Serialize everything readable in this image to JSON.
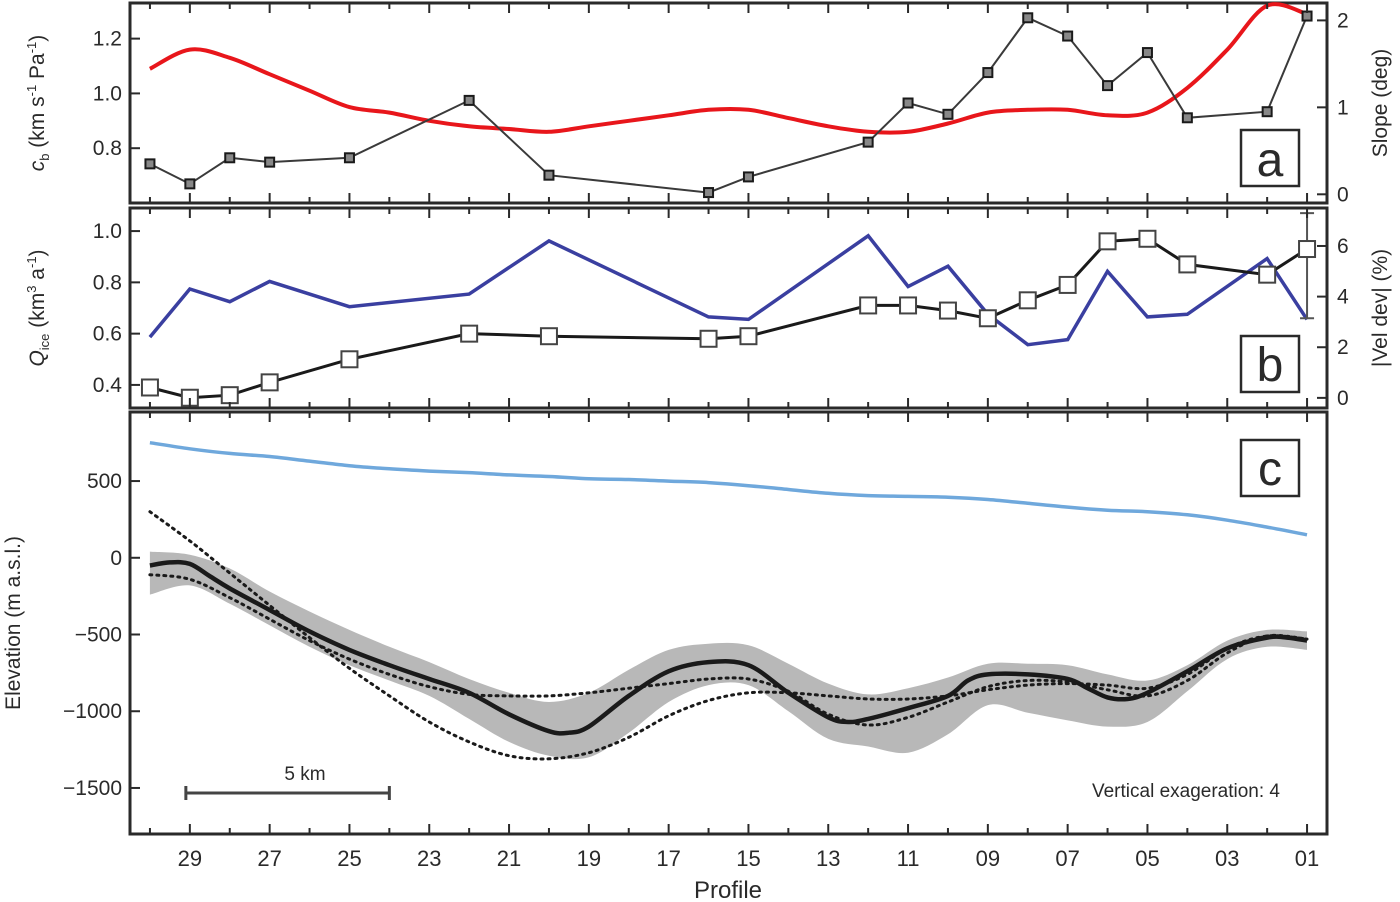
{
  "figure": {
    "panel_a": {
      "letter": "a",
      "ylabel_left": "c_b (km s^-1 Pa^-1)",
      "ylabel_left_main": "c",
      "ylabel_left_sub": "b",
      "ylabel_left_rest": " (km s",
      "ylabel_left_sup1": "-1",
      "ylabel_left_mid": " Pa",
      "ylabel_left_sup2": "-1",
      "ylabel_left_end": ")",
      "ylabel_right": "Slope (deg)"
    },
    "panel_b": {
      "letter": "b",
      "ylabel_left_main": "Q",
      "ylabel_left_sub": "ice",
      "ylabel_left_rest": " (km",
      "ylabel_left_sup1": "3",
      "ylabel_left_mid": " a",
      "ylabel_left_sup2": "-1",
      "ylabel_left_end": ")",
      "ylabel_right": "|Vel dev| (%)"
    },
    "panel_c": {
      "letter": "c",
      "ylabel": "Elevation (m a.s.l.)",
      "scalebar_label": "5 km",
      "annotation": "Vertical exageration: 4"
    },
    "xlabel": "Profile"
  },
  "colors": {
    "red": "#e8161b",
    "black": "#1a1a1a",
    "blue": "#3a3fa0",
    "lightblue": "#6fa8dc",
    "gray_band": "#b8b8b8"
  },
  "chart_data": [
    {
      "panel": "a",
      "type": "line",
      "x_ticks": [
        "29",
        "27",
        "25",
        "23",
        "21",
        "19",
        "17",
        "15",
        "13",
        "11",
        "09",
        "07",
        "05",
        "03",
        "01"
      ],
      "x_range": [
        30.5,
        0.5
      ],
      "ylim_left": [
        0.6,
        1.33
      ],
      "yticks_left": [
        "0.8",
        "1.0",
        "1.2"
      ],
      "ylim_right": [
        -0.1,
        2.2
      ],
      "yticks_right": [
        "0",
        "1",
        "2"
      ],
      "series": [
        {
          "axis": "left",
          "color": "red",
          "x": [
            30,
            29,
            28,
            27,
            26,
            25,
            24,
            23,
            22,
            21,
            20,
            19,
            18,
            17,
            16,
            15,
            14,
            13,
            12,
            11,
            10,
            9,
            8,
            7,
            6,
            5,
            4,
            3,
            2,
            1
          ],
          "y": [
            1.09,
            1.16,
            1.13,
            1.07,
            1.01,
            0.95,
            0.93,
            0.9,
            0.88,
            0.87,
            0.86,
            0.88,
            0.9,
            0.92,
            0.94,
            0.94,
            0.91,
            0.88,
            0.86,
            0.86,
            0.89,
            0.93,
            0.94,
            0.94,
            0.92,
            0.93,
            1.02,
            1.16,
            1.32,
            1.29
          ]
        },
        {
          "axis": "right",
          "color": "black",
          "marker": "square-small",
          "x": [
            30,
            29,
            28,
            27,
            25,
            22,
            20,
            16,
            15,
            12,
            11,
            10,
            9,
            8,
            7,
            6,
            5,
            4,
            2,
            1
          ],
          "y": [
            0.35,
            0.12,
            0.42,
            0.37,
            0.42,
            1.08,
            0.22,
            0.02,
            0.2,
            0.6,
            1.05,
            0.92,
            1.4,
            2.03,
            1.82,
            1.25,
            1.63,
            0.88,
            0.95,
            2.05
          ]
        }
      ]
    },
    {
      "panel": "b",
      "type": "line",
      "ylim_left": [
        0.31,
        1.09
      ],
      "yticks_left": [
        "0.4",
        "0.6",
        "0.8",
        "1.0"
      ],
      "ylim_right": [
        -0.4,
        7.5
      ],
      "yticks_right": [
        "0",
        "2",
        "4",
        "6"
      ],
      "series": [
        {
          "axis": "right",
          "color": "blue",
          "x": [
            30,
            29,
            28,
            27,
            25,
            22,
            20,
            16,
            15,
            12,
            11,
            10,
            9,
            8,
            7,
            6,
            5,
            4,
            2,
            1
          ],
          "y": [
            2.4,
            4.3,
            3.8,
            4.6,
            3.6,
            4.1,
            6.2,
            3.2,
            3.1,
            6.4,
            4.4,
            5.2,
            3.3,
            2.1,
            2.3,
            5.0,
            3.2,
            3.3,
            5.5,
            3.1
          ]
        },
        {
          "axis": "left",
          "color": "black",
          "marker": "square-open",
          "x": [
            30,
            29,
            28,
            27,
            25,
            22,
            20,
            16,
            15,
            12,
            11,
            10,
            9,
            8,
            7,
            6,
            5,
            4,
            2,
            1
          ],
          "y": [
            0.39,
            0.35,
            0.36,
            0.41,
            0.5,
            0.6,
            0.59,
            0.58,
            0.59,
            0.71,
            0.71,
            0.69,
            0.66,
            0.73,
            0.79,
            0.96,
            0.97,
            0.87,
            0.83,
            0.93
          ]
        }
      ],
      "error_bar": {
        "x": 1,
        "y": 0.93,
        "low": 0.66,
        "high": 1.07
      }
    },
    {
      "panel": "c",
      "type": "area",
      "ylim": [
        -1800,
        950
      ],
      "yticks": [
        "500",
        "0",
        "−500",
        "−1000",
        "−1500"
      ],
      "ytick_values": [
        500,
        0,
        -500,
        -1000,
        -1500
      ],
      "scalebar_x": [
        29.1,
        24.0
      ],
      "series": [
        {
          "name_hidden": "surface",
          "color": "lightblue",
          "x": [
            30,
            29,
            28,
            27,
            26,
            25,
            24,
            23,
            22,
            21,
            20,
            19,
            18,
            17,
            16,
            15,
            14,
            13,
            12,
            11,
            10,
            9,
            8,
            7,
            6,
            5,
            4,
            3,
            2,
            1
          ],
          "y": [
            750,
            710,
            680,
            660,
            630,
            600,
            580,
            565,
            555,
            540,
            530,
            515,
            510,
            500,
            490,
            470,
            445,
            420,
            405,
            400,
            395,
            380,
            355,
            330,
            310,
            300,
            280,
            245,
            200,
            150
          ]
        },
        {
          "name_hidden": "bed",
          "color": "black",
          "x": [
            30,
            29.5,
            29,
            28.5,
            28,
            27,
            26,
            25,
            24,
            23,
            22,
            21,
            20,
            19.5,
            19,
            18,
            17,
            16,
            15,
            14,
            13,
            12.5,
            12,
            11,
            10,
            9.5,
            9,
            8,
            7,
            6.5,
            6,
            5.5,
            5,
            4,
            3,
            2,
            1.5,
            1
          ],
          "y": [
            -50,
            -30,
            -40,
            -120,
            -200,
            -340,
            -480,
            -600,
            -700,
            -790,
            -880,
            -1020,
            -1130,
            -1140,
            -1100,
            -900,
            -740,
            -680,
            -700,
            -880,
            -1040,
            -1070,
            -1050,
            -980,
            -900,
            -800,
            -760,
            -760,
            -790,
            -850,
            -910,
            -920,
            -880,
            -740,
            -590,
            -520,
            -520,
            -540
          ]
        },
        {
          "name_hidden": "band_upper",
          "color": "gray_band",
          "x": [
            30,
            29,
            28,
            27,
            26,
            25,
            24,
            23,
            22,
            21,
            20,
            19,
            18,
            17,
            16,
            15,
            14,
            13,
            12,
            11,
            10,
            9,
            8,
            7,
            6,
            5,
            4,
            3,
            2,
            1
          ],
          "y": [
            40,
            20,
            -70,
            -220,
            -350,
            -470,
            -580,
            -680,
            -790,
            -880,
            -940,
            -880,
            -730,
            -600,
            -560,
            -570,
            -690,
            -820,
            -890,
            -850,
            -780,
            -690,
            -690,
            -700,
            -760,
            -800,
            -700,
            -540,
            -470,
            -480
          ]
        },
        {
          "name_hidden": "band_lower",
          "color": "gray_band",
          "x": [
            30,
            29,
            28,
            27,
            26,
            25,
            24,
            23,
            22,
            21,
            20,
            19,
            18,
            17,
            16,
            15,
            14,
            13,
            12,
            11,
            10,
            9,
            8,
            7,
            6,
            5,
            4,
            3,
            2,
            1
          ],
          "y": [
            -240,
            -180,
            -300,
            -440,
            -580,
            -700,
            -800,
            -900,
            -1050,
            -1200,
            -1290,
            -1300,
            -1140,
            -940,
            -830,
            -830,
            -1000,
            -1180,
            -1230,
            -1270,
            -1150,
            -960,
            -1010,
            -1060,
            -1100,
            -1070,
            -870,
            -660,
            -580,
            -600
          ]
        },
        {
          "name_hidden": "dotted_1",
          "color": "black",
          "style": "dotted",
          "x": [
            30,
            29,
            28,
            27,
            26,
            25,
            24,
            23,
            22,
            21,
            20,
            19,
            18,
            17,
            16,
            15,
            14,
            13,
            12,
            11,
            10,
            9,
            8,
            7,
            6,
            5,
            4,
            3,
            2,
            1
          ],
          "y": [
            300,
            110,
            -100,
            -310,
            -520,
            -720,
            -900,
            -1070,
            -1200,
            -1290,
            -1310,
            -1270,
            -1170,
            -1030,
            -930,
            -880,
            -880,
            -900,
            -920,
            -920,
            -900,
            -860,
            -830,
            -820,
            -830,
            -850,
            -760,
            -590,
            -510,
            -530
          ]
        },
        {
          "name_hidden": "dotted_2",
          "color": "black",
          "style": "dotted",
          "x": [
            30,
            29,
            28,
            27,
            26,
            25,
            24,
            23,
            22,
            21,
            20,
            19,
            18,
            17,
            16,
            15,
            14,
            13,
            12,
            11,
            10,
            9,
            8,
            7,
            6,
            5,
            4,
            3,
            2,
            1
          ],
          "y": [
            -110,
            -140,
            -260,
            -400,
            -540,
            -660,
            -760,
            -840,
            -890,
            -900,
            -900,
            -880,
            -850,
            -820,
            -790,
            -790,
            -870,
            -1020,
            -1090,
            -1040,
            -940,
            -840,
            -800,
            -810,
            -860,
            -900,
            -800,
            -620,
            -510,
            -530
          ]
        }
      ]
    }
  ]
}
